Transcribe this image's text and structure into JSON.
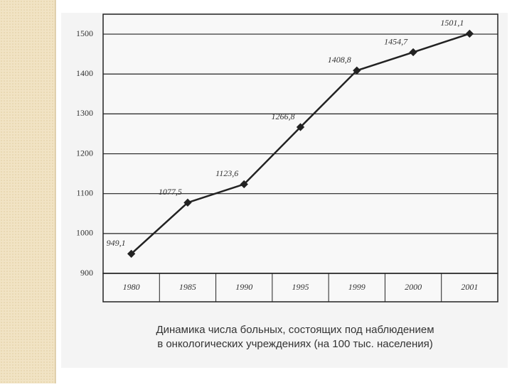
{
  "chart_data": {
    "type": "line",
    "categories": [
      "1980",
      "1985",
      "1990",
      "1995",
      "1999",
      "2000",
      "2001"
    ],
    "values": [
      949.1,
      1077.5,
      1123.6,
      1266.8,
      1408.8,
      1454.7,
      1501.1
    ],
    "value_labels": [
      "949,1",
      "1077,5",
      "1123,6",
      "1266,8",
      "1408,8",
      "1454,7",
      "1501,1"
    ],
    "color": "#222222",
    "ylim": [
      900,
      1550
    ],
    "yticks": [
      900,
      1000,
      1100,
      1200,
      1300,
      1400,
      1500
    ],
    "grid": true,
    "caption": [
      "Динамика числа больных, состоящих под наблюдением",
      "в онкологических учреждениях (на 100 тыс. населения)"
    ]
  }
}
